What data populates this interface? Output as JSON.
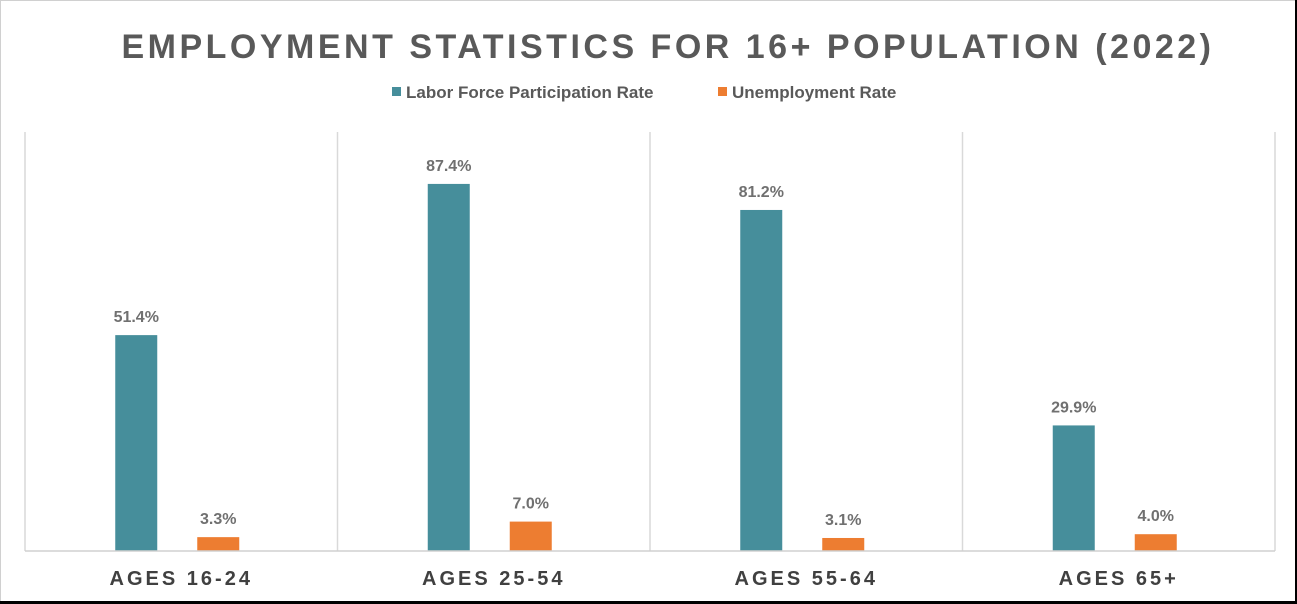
{
  "chart_data": {
    "type": "bar",
    "title": "EMPLOYMENT STATISTICS FOR 16+ POPULATION (2022)",
    "categories": [
      "AGES 16-24",
      "AGES 25-54",
      "AGES 55-64",
      "AGES 65+"
    ],
    "series": [
      {
        "name": "Labor Force Participation Rate",
        "color": "#468e9b",
        "values": [
          51.4,
          87.4,
          81.2,
          29.9
        ],
        "labels": [
          "51.4%",
          "87.4%",
          "81.2%",
          "29.9%"
        ]
      },
      {
        "name": "Unemployment Rate",
        "color": "#ed7d31",
        "values": [
          3.3,
          7.0,
          3.1,
          4.0
        ],
        "labels": [
          "3.3%",
          "7.0%",
          "3.1%",
          "4.0%"
        ]
      }
    ],
    "ylim": [
      0,
      100
    ],
    "legend_position": "top",
    "grid": "vertical category separators"
  }
}
